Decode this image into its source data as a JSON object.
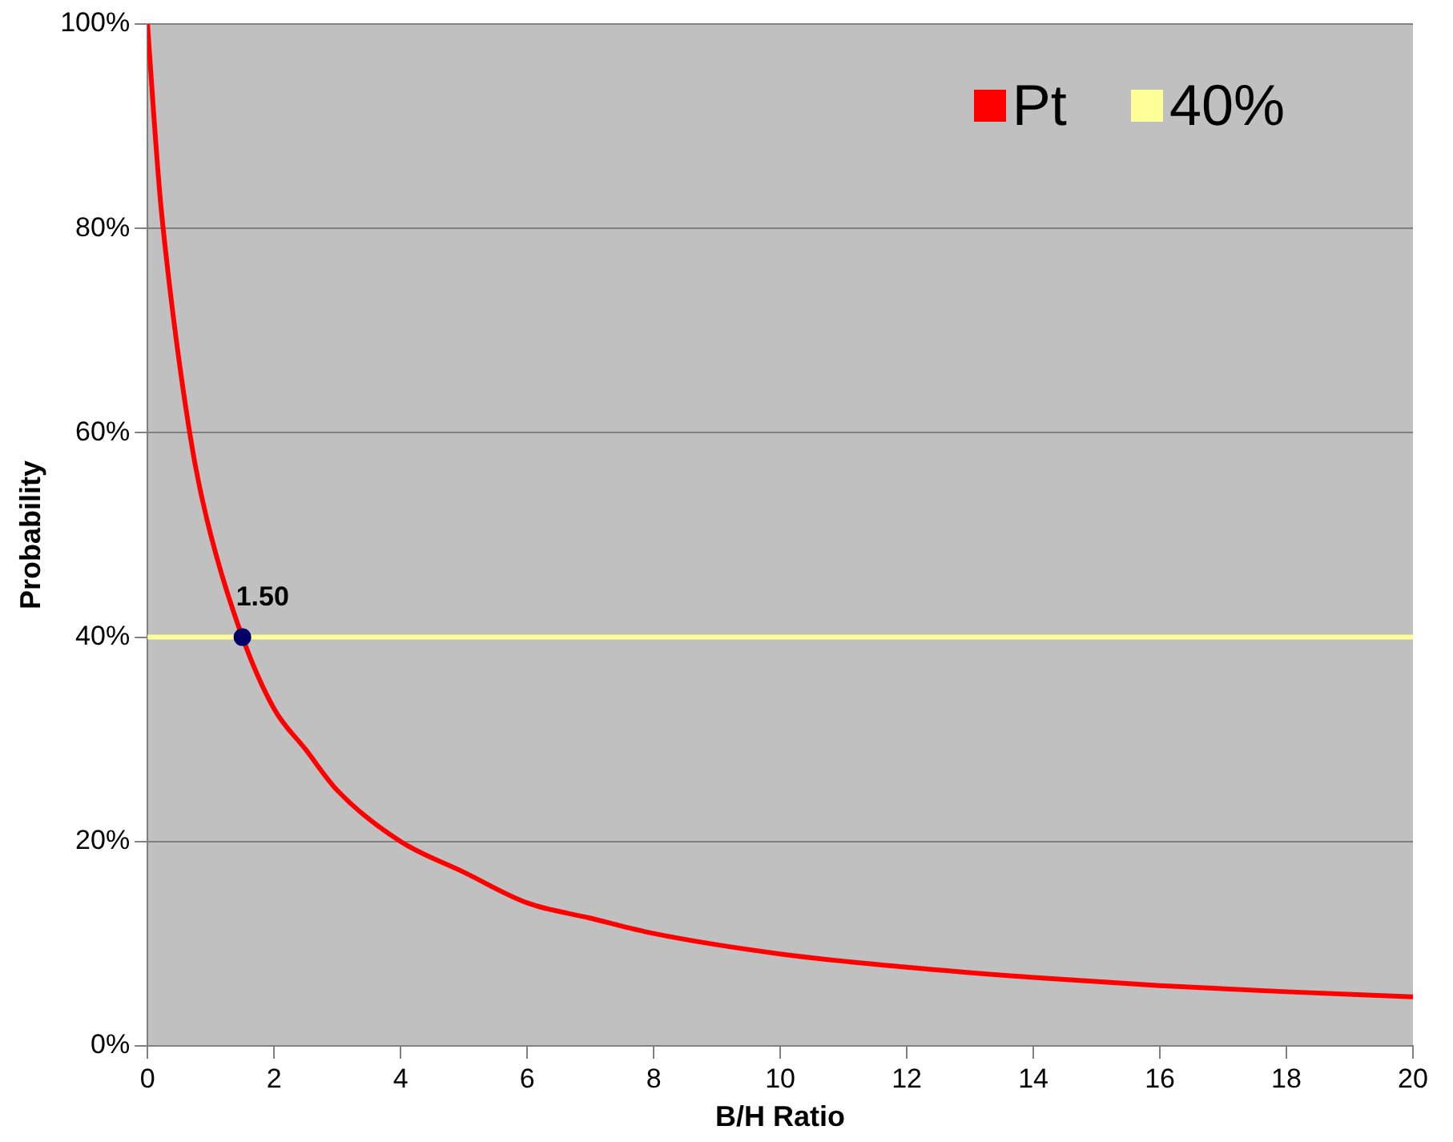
{
  "chart_data": {
    "type": "line",
    "xlabel": "B/H Ratio",
    "ylabel": "Probability",
    "xlim": [
      0,
      20
    ],
    "xticks": [
      0,
      2,
      4,
      6,
      8,
      10,
      12,
      14,
      16,
      18,
      20
    ],
    "ylim": [
      0,
      100
    ],
    "yticks": [
      {
        "value": 0,
        "label": "0%"
      },
      {
        "value": 20,
        "label": "20%"
      },
      {
        "value": 40,
        "label": "40%"
      },
      {
        "value": 60,
        "label": "60%"
      },
      {
        "value": 80,
        "label": "80%"
      },
      {
        "value": 100,
        "label": "100%"
      }
    ],
    "grid": "y",
    "legend": "top right",
    "marker": "none",
    "line_style": "solid",
    "series": [
      {
        "name": "Pt",
        "color": "#ff0000",
        "x": [
          0,
          0.1,
          0.2,
          0.3,
          0.5,
          0.75,
          1,
          1.5,
          2,
          2.5,
          3,
          4,
          5,
          6,
          7,
          8,
          10,
          12,
          14,
          16,
          18,
          20
        ],
        "values": [
          100,
          91,
          83,
          77,
          67,
          57,
          50,
          40,
          33,
          29,
          25,
          20,
          17,
          14,
          12.5,
          11,
          9,
          7.7,
          6.7,
          5.9,
          5.3,
          4.8
        ]
      },
      {
        "name": "40%",
        "color": "#ffff99",
        "x": [
          0,
          20
        ],
        "values": [
          40,
          40
        ]
      },
      {
        "type": "scatter",
        "marker": "circle",
        "color": "#000066",
        "x": [
          1.5
        ],
        "values": [
          40
        ]
      }
    ],
    "annotations": [
      {
        "text": "1.50",
        "x": 1.5,
        "y": 40
      }
    ]
  }
}
